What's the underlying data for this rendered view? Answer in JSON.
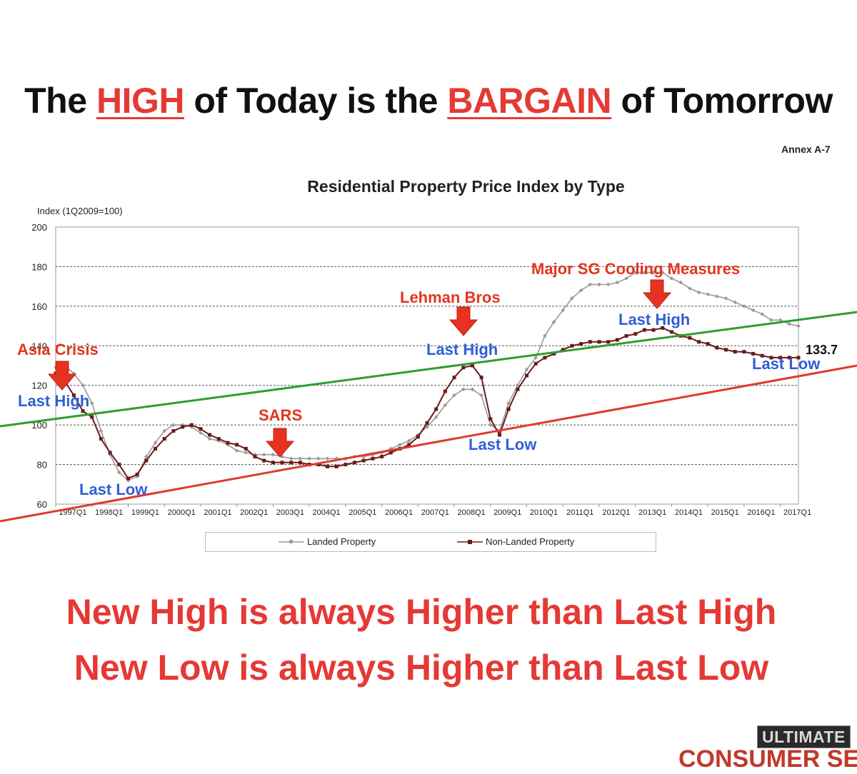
{
  "headline": {
    "part1": "The ",
    "highlight1": "HIGH",
    "part2": " of Today is the ",
    "highlight2": "BARGAIN",
    "part3": " of Tomorrow"
  },
  "annex": "Annex A-7",
  "taglines": [
    "New High is always Higher than Last High",
    "New Low is always Higher than Last Low"
  ],
  "logo": {
    "top": "ULTIMATE",
    "bottom": "CONSUMER SE"
  },
  "colors": {
    "accent_red": "#e53935",
    "label_blue": "#2f5fd6",
    "uptrend_green": "#2e9e2e",
    "support_red": "#e03a2a",
    "landed_grey": "#9a9a9a",
    "nonlanded_darkred": "#6b1a1a"
  },
  "chart_data": {
    "type": "line",
    "title": "Residential Property Price Index by Type",
    "ylabel": "Index (1Q2009=100)",
    "xlabel": "",
    "ylim": [
      60,
      200
    ],
    "yticks": [
      60,
      80,
      100,
      120,
      140,
      160,
      180,
      200
    ],
    "grid": true,
    "legend_position": "bottom",
    "x_tick_labels": [
      "1997Q1",
      "1998Q1",
      "1999Q1",
      "2000Q1",
      "2001Q1",
      "2002Q1",
      "2003Q1",
      "2004Q1",
      "2005Q1",
      "2006Q1",
      "2007Q1",
      "2008Q1",
      "2009Q1",
      "2010Q1",
      "2011Q1",
      "2012Q1",
      "2013Q1",
      "2014Q1",
      "2015Q1",
      "2016Q1",
      "2017Q1"
    ],
    "series": [
      {
        "name": "Landed Property",
        "color": "#9a9a9a",
        "marker": "diamond",
        "points": [
          [
            1997.0,
            129
          ],
          [
            1997.25,
            130
          ],
          [
            1997.5,
            126
          ],
          [
            1997.75,
            120
          ],
          [
            1998.0,
            111
          ],
          [
            1998.25,
            97
          ],
          [
            1998.5,
            85
          ],
          [
            1998.75,
            76
          ],
          [
            1999.0,
            72
          ],
          [
            1999.25,
            74
          ],
          [
            1999.5,
            84
          ],
          [
            1999.75,
            91
          ],
          [
            2000.0,
            97
          ],
          [
            2000.25,
            100
          ],
          [
            2000.5,
            100
          ],
          [
            2000.75,
            99
          ],
          [
            2001.0,
            96
          ],
          [
            2001.25,
            93
          ],
          [
            2001.5,
            92
          ],
          [
            2001.75,
            90
          ],
          [
            2002.0,
            87
          ],
          [
            2002.25,
            86
          ],
          [
            2002.5,
            85
          ],
          [
            2002.75,
            85
          ],
          [
            2003.0,
            85
          ],
          [
            2003.25,
            84
          ],
          [
            2003.5,
            83
          ],
          [
            2003.75,
            83
          ],
          [
            2004.0,
            83
          ],
          [
            2004.25,
            83
          ],
          [
            2004.5,
            83
          ],
          [
            2004.75,
            83
          ],
          [
            2005.0,
            83
          ],
          [
            2005.25,
            84
          ],
          [
            2005.5,
            84
          ],
          [
            2005.75,
            85
          ],
          [
            2006.0,
            86
          ],
          [
            2006.25,
            88
          ],
          [
            2006.5,
            90
          ],
          [
            2006.75,
            92
          ],
          [
            2007.0,
            95
          ],
          [
            2007.25,
            99
          ],
          [
            2007.5,
            104
          ],
          [
            2007.75,
            110
          ],
          [
            2008.0,
            115
          ],
          [
            2008.25,
            118
          ],
          [
            2008.5,
            118
          ],
          [
            2008.75,
            115
          ],
          [
            2009.0,
            100
          ],
          [
            2009.25,
            97
          ],
          [
            2009.5,
            111
          ],
          [
            2009.75,
            120
          ],
          [
            2010.0,
            128
          ],
          [
            2010.25,
            134
          ],
          [
            2010.5,
            145
          ],
          [
            2010.75,
            152
          ],
          [
            2011.0,
            158
          ],
          [
            2011.25,
            164
          ],
          [
            2011.5,
            168
          ],
          [
            2011.75,
            171
          ],
          [
            2012.0,
            171
          ],
          [
            2012.25,
            171
          ],
          [
            2012.5,
            172
          ],
          [
            2012.75,
            174
          ],
          [
            2013.0,
            177
          ],
          [
            2013.25,
            177
          ],
          [
            2013.5,
            177
          ],
          [
            2013.75,
            177
          ],
          [
            2014.0,
            174
          ],
          [
            2014.25,
            172
          ],
          [
            2014.5,
            169
          ],
          [
            2014.75,
            167
          ],
          [
            2015.0,
            166
          ],
          [
            2015.25,
            165
          ],
          [
            2015.5,
            164
          ],
          [
            2015.75,
            162
          ],
          [
            2016.0,
            160
          ],
          [
            2016.25,
            158
          ],
          [
            2016.5,
            156
          ],
          [
            2016.75,
            153
          ],
          [
            2017.0,
            153
          ],
          [
            2017.25,
            151
          ],
          [
            2017.5,
            150
          ]
        ]
      },
      {
        "name": "Non-Landed Property",
        "color": "#6b1a1a",
        "marker": "square",
        "points": [
          [
            1997.0,
            126
          ],
          [
            1997.25,
            122
          ],
          [
            1997.5,
            115
          ],
          [
            1997.75,
            107
          ],
          [
            1998.0,
            104
          ],
          [
            1998.25,
            93
          ],
          [
            1998.5,
            86
          ],
          [
            1998.75,
            80
          ],
          [
            1999.0,
            73
          ],
          [
            1999.25,
            75
          ],
          [
            1999.5,
            82
          ],
          [
            1999.75,
            88
          ],
          [
            2000.0,
            93
          ],
          [
            2000.25,
            97
          ],
          [
            2000.5,
            99
          ],
          [
            2000.75,
            100
          ],
          [
            2001.0,
            98
          ],
          [
            2001.25,
            95
          ],
          [
            2001.5,
            93
          ],
          [
            2001.75,
            91
          ],
          [
            2002.0,
            90
          ],
          [
            2002.25,
            88
          ],
          [
            2002.5,
            84
          ],
          [
            2002.75,
            82
          ],
          [
            2003.0,
            81
          ],
          [
            2003.25,
            81
          ],
          [
            2003.5,
            81
          ],
          [
            2003.75,
            81
          ],
          [
            2004.0,
            80
          ],
          [
            2004.25,
            80
          ],
          [
            2004.5,
            79
          ],
          [
            2004.75,
            79
          ],
          [
            2005.0,
            80
          ],
          [
            2005.25,
            81
          ],
          [
            2005.5,
            82
          ],
          [
            2005.75,
            83
          ],
          [
            2006.0,
            84
          ],
          [
            2006.25,
            86
          ],
          [
            2006.5,
            88
          ],
          [
            2006.75,
            90
          ],
          [
            2007.0,
            94
          ],
          [
            2007.25,
            101
          ],
          [
            2007.5,
            108
          ],
          [
            2007.75,
            117
          ],
          [
            2008.0,
            124
          ],
          [
            2008.25,
            129
          ],
          [
            2008.5,
            130
          ],
          [
            2008.75,
            124
          ],
          [
            2009.0,
            103
          ],
          [
            2009.25,
            95
          ],
          [
            2009.5,
            108
          ],
          [
            2009.75,
            118
          ],
          [
            2010.0,
            125
          ],
          [
            2010.25,
            131
          ],
          [
            2010.5,
            134
          ],
          [
            2010.75,
            136
          ],
          [
            2011.0,
            138
          ],
          [
            2011.25,
            140
          ],
          [
            2011.5,
            141
          ],
          [
            2011.75,
            142
          ],
          [
            2012.0,
            142
          ],
          [
            2012.25,
            142
          ],
          [
            2012.5,
            143
          ],
          [
            2012.75,
            145
          ],
          [
            2013.0,
            146
          ],
          [
            2013.25,
            148
          ],
          [
            2013.5,
            148
          ],
          [
            2013.75,
            149
          ],
          [
            2014.0,
            147
          ],
          [
            2014.25,
            145
          ],
          [
            2014.5,
            144
          ],
          [
            2014.75,
            142
          ],
          [
            2015.0,
            141
          ],
          [
            2015.25,
            139
          ],
          [
            2015.5,
            138
          ],
          [
            2015.75,
            137
          ],
          [
            2016.0,
            137
          ],
          [
            2016.25,
            136
          ],
          [
            2016.5,
            135
          ],
          [
            2016.75,
            134
          ],
          [
            2017.0,
            134
          ],
          [
            2017.25,
            134
          ],
          [
            2017.5,
            134
          ]
        ]
      }
    ],
    "value_label": "133.7",
    "trendlines": [
      {
        "name": "resistance",
        "color": "#2e9e2e"
      },
      {
        "name": "support",
        "color": "#e03a2a"
      }
    ],
    "annotations": {
      "red": [
        {
          "text": "Asia Crisis",
          "x": 1997.0
        },
        {
          "text": "SARS",
          "x": 2003.25
        },
        {
          "text": "Lehman Bros",
          "x": 2008.25
        },
        {
          "text": "Major SG Cooling Measures",
          "x": 2013.5
        }
      ],
      "blue": [
        {
          "text": "Last High",
          "x": 1997.0
        },
        {
          "text": "Last Low",
          "x": 1999.0
        },
        {
          "text": "Last High",
          "x": 2008.25
        },
        {
          "text": "Last Low",
          "x": 2009.25
        },
        {
          "text": "Last High",
          "x": 2013.75
        },
        {
          "text": "Last Low",
          "x": 2017.25
        }
      ],
      "arrows_x": [
        1997.0,
        2003.25,
        2008.25,
        2013.75
      ]
    }
  }
}
